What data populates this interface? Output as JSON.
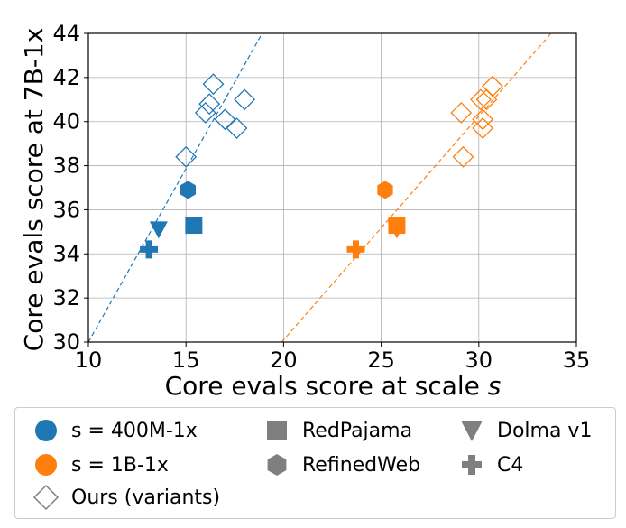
{
  "chart_data": {
    "type": "scatter",
    "xlabel": "Core evals score at scale s",
    "ylabel": "Core evals score at 7B-1x",
    "xlim": [
      10,
      35
    ],
    "ylim": [
      30,
      44
    ],
    "xticks": [
      10,
      15,
      20,
      25,
      30,
      35
    ],
    "yticks": [
      30,
      32,
      34,
      36,
      38,
      40,
      42,
      44
    ],
    "grid": true,
    "colors": {
      "blue": "#1f77b4",
      "orange": "#ff7f0e",
      "gray": "#7f7f7f"
    },
    "scales": [
      {
        "name": "s = 400M-1x",
        "color": "#1f77b4",
        "baselines": [
          {
            "dataset": "RedPajama",
            "marker": "square",
            "x": 15.4,
            "y": 35.3
          },
          {
            "dataset": "RefinedWeb",
            "marker": "hexagon",
            "x": 15.1,
            "y": 36.9
          },
          {
            "dataset": "Dolma v1",
            "marker": "triangle-down",
            "x": 13.6,
            "y": 35.1
          },
          {
            "dataset": "C4",
            "marker": "plus",
            "x": 13.1,
            "y": 34.2
          }
        ],
        "ours": [
          {
            "x": 15.0,
            "y": 38.4
          },
          {
            "x": 16.0,
            "y": 40.4
          },
          {
            "x": 16.2,
            "y": 40.8
          },
          {
            "x": 16.4,
            "y": 41.7
          },
          {
            "x": 17.0,
            "y": 40.1
          },
          {
            "x": 17.6,
            "y": 39.7
          },
          {
            "x": 18.0,
            "y": 41.0
          }
        ],
        "fit_line": [
          [
            10.0,
            30.0
          ],
          [
            18.9,
            44.0
          ]
        ]
      },
      {
        "name": "s = 1B-1x",
        "color": "#ff7f0e",
        "baselines": [
          {
            "dataset": "RedPajama",
            "marker": "square",
            "x": 25.8,
            "y": 35.3
          },
          {
            "dataset": "RefinedWeb",
            "marker": "hexagon",
            "x": 25.2,
            "y": 36.9
          },
          {
            "dataset": "Dolma v1",
            "marker": "triangle-down",
            "x": 25.8,
            "y": 35.1
          },
          {
            "dataset": "C4",
            "marker": "plus",
            "x": 23.7,
            "y": 34.2
          }
        ],
        "ours": [
          {
            "x": 29.1,
            "y": 40.4
          },
          {
            "x": 29.2,
            "y": 38.4
          },
          {
            "x": 30.1,
            "y": 41.0
          },
          {
            "x": 30.2,
            "y": 40.1
          },
          {
            "x": 30.2,
            "y": 39.7
          },
          {
            "x": 30.4,
            "y": 41.0
          },
          {
            "x": 30.7,
            "y": 41.6
          }
        ],
        "fit_line": [
          [
            19.9,
            30.0
          ],
          [
            33.7,
            44.0
          ]
        ]
      }
    ]
  },
  "legend": [
    {
      "label": "s = 400M-1x",
      "marker": "circle",
      "color": "#1f77b4"
    },
    {
      "label": "s = 1B-1x",
      "marker": "circle",
      "color": "#ff7f0e"
    },
    {
      "label": "Ours (variants)",
      "marker": "diamond-open",
      "color": "#7f7f7f"
    },
    {
      "label": "RedPajama",
      "marker": "square",
      "color": "#7f7f7f"
    },
    {
      "label": "RefinedWeb",
      "marker": "hexagon",
      "color": "#7f7f7f"
    },
    {
      "label": "Dolma v1",
      "marker": "triangle-down",
      "color": "#7f7f7f"
    },
    {
      "label": "C4",
      "marker": "plus",
      "color": "#7f7f7f"
    }
  ]
}
